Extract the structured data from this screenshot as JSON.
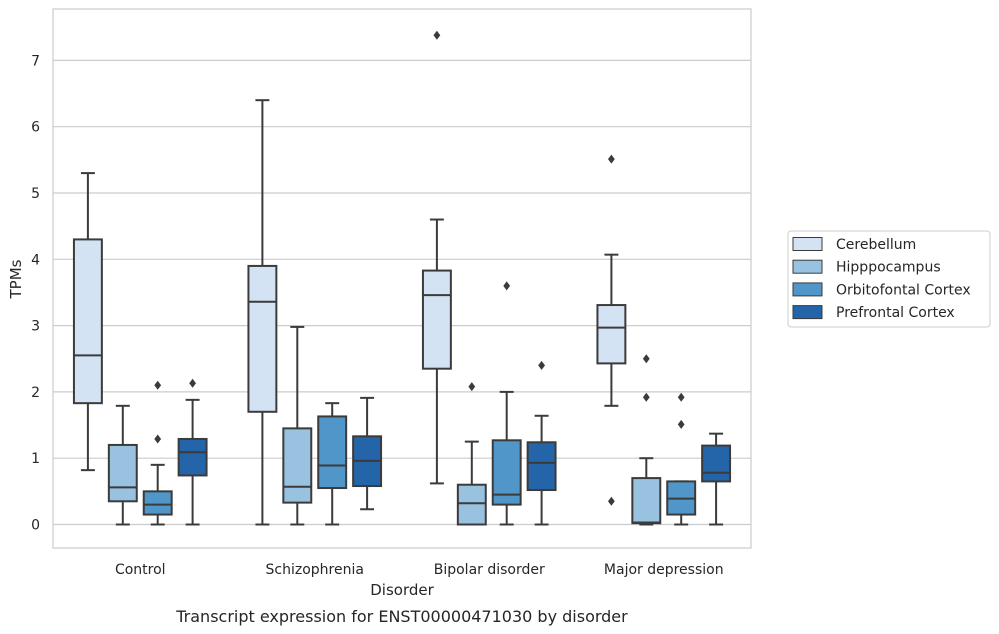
{
  "chart_data": {
    "type": "box",
    "title": "",
    "caption": "Transcript expression for ENST00000471030 by disorder",
    "xlabel": "Disorder",
    "ylabel": "TPMs",
    "ylim": [
      -0.35,
      7.75
    ],
    "yticks": [
      0,
      1,
      2,
      3,
      4,
      5,
      6,
      7
    ],
    "grid": "horizontal",
    "legend_position": "right",
    "categories": [
      "Control",
      "Schizophrenia",
      "Bipolar disorder",
      "Major depression"
    ],
    "series": [
      {
        "name": "Cerebellum",
        "color": "#d3e3f3",
        "boxes": [
          {
            "whislo": 0.82,
            "q1": 1.83,
            "med": 2.55,
            "q3": 4.3,
            "whishi": 5.3,
            "fliers": []
          },
          {
            "whislo": 0.0,
            "q1": 1.7,
            "med": 3.36,
            "q3": 3.9,
            "whishi": 6.4,
            "fliers": []
          },
          {
            "whislo": 0.62,
            "q1": 2.35,
            "med": 3.46,
            "q3": 3.83,
            "whishi": 4.6,
            "fliers": [
              7.38
            ]
          },
          {
            "whislo": 1.79,
            "q1": 2.43,
            "med": 2.97,
            "q3": 3.31,
            "whishi": 4.07,
            "fliers": [
              5.51,
              0.35
            ]
          }
        ]
      },
      {
        "name": "Hipppocampus",
        "color": "#98c2df",
        "boxes": [
          {
            "whislo": 0.0,
            "q1": 0.35,
            "med": 0.56,
            "q3": 1.2,
            "whishi": 1.79,
            "fliers": []
          },
          {
            "whislo": 0.0,
            "q1": 0.33,
            "med": 0.57,
            "q3": 1.45,
            "whishi": 2.98,
            "fliers": []
          },
          {
            "whislo": 0.0,
            "q1": 0.0,
            "med": 0.32,
            "q3": 0.6,
            "whishi": 1.25,
            "fliers": [
              2.08
            ]
          },
          {
            "whislo": 0.0,
            "q1": 0.02,
            "med": 0.03,
            "q3": 0.7,
            "whishi": 1.0,
            "fliers": [
              2.5,
              1.92
            ]
          }
        ]
      },
      {
        "name": "Orbitofontal Cortex",
        "color": "#5096c9",
        "boxes": [
          {
            "whislo": 0.0,
            "q1": 0.15,
            "med": 0.3,
            "q3": 0.5,
            "whishi": 0.9,
            "fliers": [
              2.1,
              1.29
            ]
          },
          {
            "whislo": 0.0,
            "q1": 0.55,
            "med": 0.89,
            "q3": 1.63,
            "whishi": 1.83,
            "fliers": []
          },
          {
            "whislo": 0.0,
            "q1": 0.3,
            "med": 0.45,
            "q3": 1.27,
            "whishi": 2.0,
            "fliers": [
              3.6
            ]
          },
          {
            "whislo": 0.0,
            "q1": 0.15,
            "med": 0.39,
            "q3": 0.65,
            "whishi": 0.65,
            "fliers": [
              1.92,
              1.51
            ]
          }
        ]
      },
      {
        "name": "Prefrontal Cortex",
        "color": "#2464a8",
        "boxes": [
          {
            "whislo": 0.0,
            "q1": 0.74,
            "med": 1.09,
            "q3": 1.29,
            "whishi": 1.88,
            "fliers": [
              2.13
            ]
          },
          {
            "whislo": 0.23,
            "q1": 0.58,
            "med": 0.96,
            "q3": 1.33,
            "whishi": 1.91,
            "fliers": []
          },
          {
            "whislo": 0.0,
            "q1": 0.52,
            "med": 0.93,
            "q3": 1.24,
            "whishi": 1.64,
            "fliers": [
              2.4
            ]
          },
          {
            "whislo": 0.0,
            "q1": 0.65,
            "med": 0.78,
            "q3": 1.19,
            "whishi": 1.37,
            "fliers": []
          }
        ]
      }
    ]
  }
}
